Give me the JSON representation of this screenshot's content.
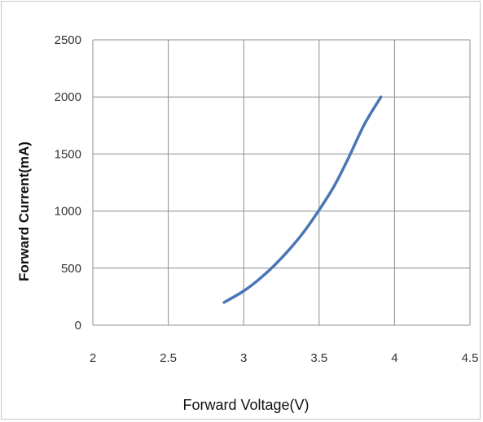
{
  "chart_data": {
    "type": "line",
    "title": "",
    "xlabel": "Forward Voltage(V)",
    "ylabel": "Forward Current(mA)",
    "xlim": [
      2,
      4.5
    ],
    "ylim": [
      0,
      2500
    ],
    "x_ticks": [
      "2",
      "2.5",
      "3",
      "3.5",
      "4",
      "4.5"
    ],
    "y_ticks": [
      "0",
      "500",
      "1000",
      "1500",
      "2000",
      "2500"
    ],
    "grid": true,
    "series": [
      {
        "color": "#4a76b5",
        "x": [
          2.87,
          3.0,
          3.1,
          3.2,
          3.3,
          3.4,
          3.5,
          3.6,
          3.7,
          3.8,
          3.91
        ],
        "y": [
          200,
          300,
          400,
          520,
          660,
          820,
          1010,
          1220,
          1480,
          1760,
          2000
        ]
      }
    ]
  }
}
